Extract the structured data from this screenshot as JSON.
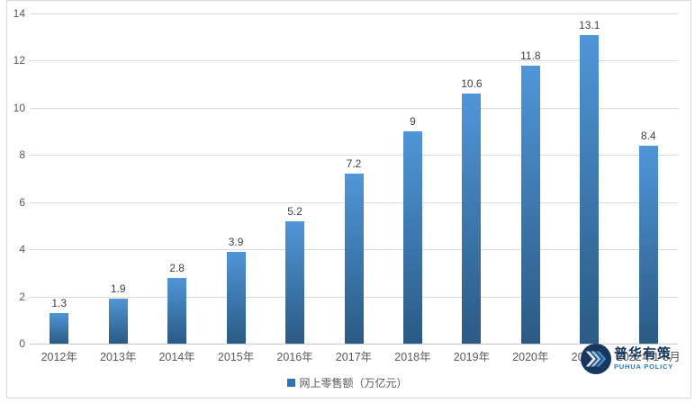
{
  "chart_data": {
    "type": "bar",
    "categories": [
      "2012年",
      "2013年",
      "2014年",
      "2015年",
      "2016年",
      "2017年",
      "2018年",
      "2019年",
      "2020年",
      "2021年",
      "2022年1-8月"
    ],
    "values": [
      1.3,
      1.9,
      2.8,
      3.9,
      5.2,
      7.2,
      9,
      10.6,
      11.8,
      13.1,
      8.4
    ],
    "value_labels": [
      "1.3",
      "1.9",
      "2.8",
      "3.9",
      "5.2",
      "7.2",
      "9",
      "10.6",
      "11.8",
      "13.1",
      "8.4"
    ],
    "title": "",
    "xlabel": "",
    "ylabel": "",
    "ylim": [
      0,
      14
    ],
    "yticks": [
      0,
      2,
      4,
      6,
      8,
      10,
      12,
      14
    ],
    "grid": true,
    "legend_position": "bottom",
    "series_name": "网上零售额（万亿元）"
  },
  "legend": {
    "label": "网上零售额（万亿元）",
    "marker_color": "#2e74b5"
  },
  "watermark": {
    "cn": "普华有策",
    "en": "PUHUA POLICY"
  },
  "colors": {
    "bar_gradient_top": "#4f96d8",
    "bar_gradient_bottom": "#2b5a84",
    "gridline": "#d9d9d9",
    "axis_text": "#595959",
    "data_label_text": "#404040",
    "logo_circle": "#17375e",
    "logo_chevron_1": "#ddebf7",
    "logo_chevron_2": "#9cc2e5",
    "logo_chevron_3": "#3e87c9",
    "logo_cn_text": "#17375e",
    "logo_en_text": "#2e75b6"
  }
}
